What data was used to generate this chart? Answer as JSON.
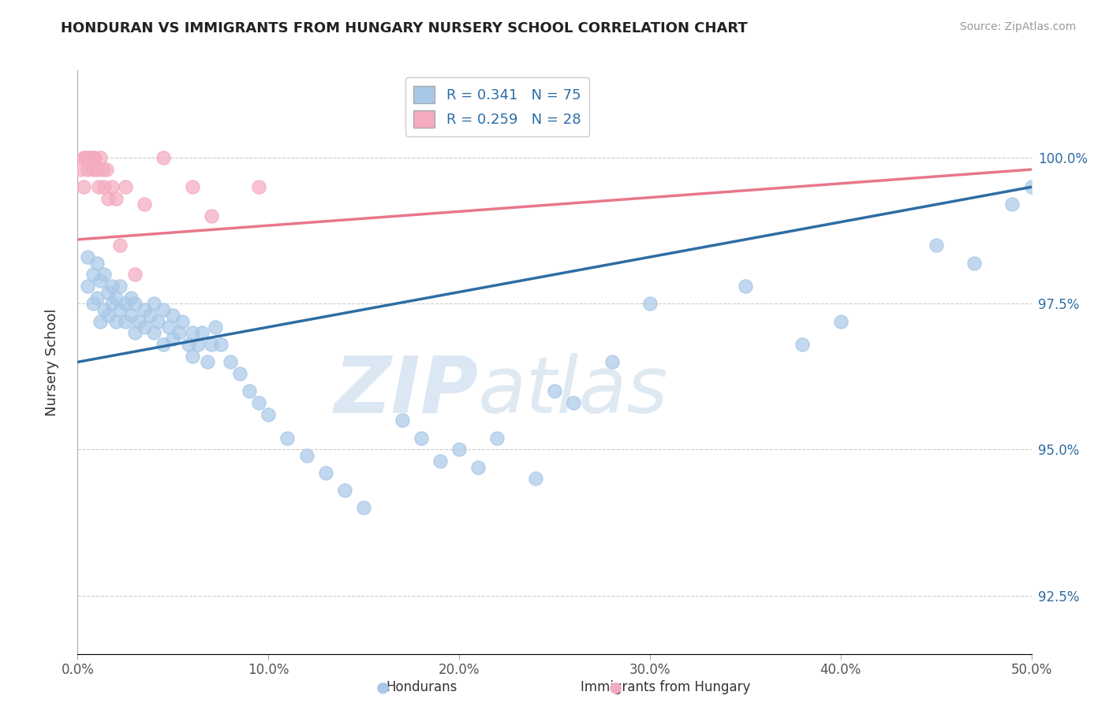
{
  "title": "HONDURAN VS IMMIGRANTS FROM HUNGARY NURSERY SCHOOL CORRELATION CHART",
  "source": "Source: ZipAtlas.com",
  "ylabel": "Nursery School",
  "xlim": [
    0.0,
    50.0
  ],
  "ylim": [
    91.5,
    101.5
  ],
  "xtick_labels": [
    "0.0%",
    "10.0%",
    "20.0%",
    "30.0%",
    "40.0%",
    "50.0%"
  ],
  "xtick_vals": [
    0,
    10,
    20,
    30,
    40,
    50
  ],
  "ytick_labels": [
    "92.5%",
    "95.0%",
    "97.5%",
    "100.0%"
  ],
  "ytick_vals": [
    92.5,
    95.0,
    97.5,
    100.0
  ],
  "legend_labels": [
    "Hondurans",
    "Immigrants from Hungary"
  ],
  "r_blue": 0.341,
  "n_blue": 75,
  "r_pink": 0.259,
  "n_pink": 28,
  "blue_color": "#A8C8E8",
  "pink_color": "#F4AABF",
  "blue_line_color": "#2E6DA4",
  "pink_line_color": "#E8778A",
  "blue_line_x0": 0.0,
  "blue_line_y0": 96.5,
  "blue_line_x1": 50.0,
  "blue_line_y1": 99.5,
  "pink_line_x0": 0.0,
  "pink_line_y0": 98.6,
  "pink_line_x1": 50.0,
  "pink_line_y1": 99.8,
  "honduran_x": [
    0.5,
    0.5,
    0.8,
    0.8,
    1.0,
    1.0,
    1.2,
    1.2,
    1.4,
    1.4,
    1.6,
    1.6,
    1.8,
    1.8,
    2.0,
    2.0,
    2.2,
    2.2,
    2.5,
    2.5,
    2.8,
    2.8,
    3.0,
    3.0,
    3.2,
    3.5,
    3.5,
    3.8,
    4.0,
    4.0,
    4.2,
    4.5,
    4.5,
    4.8,
    5.0,
    5.0,
    5.3,
    5.5,
    5.8,
    6.0,
    6.0,
    6.3,
    6.5,
    6.8,
    7.0,
    7.2,
    7.5,
    8.0,
    8.5,
    9.0,
    9.5,
    10.0,
    11.0,
    12.0,
    13.0,
    14.0,
    15.0,
    17.0,
    18.0,
    19.0,
    20.0,
    21.0,
    22.0,
    24.0,
    25.0,
    26.0,
    28.0,
    30.0,
    35.0,
    38.0,
    40.0,
    45.0,
    47.0,
    49.0,
    50.0
  ],
  "honduran_y": [
    97.8,
    98.3,
    97.5,
    98.0,
    97.6,
    98.2,
    97.2,
    97.9,
    97.4,
    98.0,
    97.3,
    97.7,
    97.5,
    97.8,
    97.2,
    97.6,
    97.4,
    97.8,
    97.5,
    97.2,
    97.3,
    97.6,
    97.0,
    97.5,
    97.2,
    97.4,
    97.1,
    97.3,
    97.5,
    97.0,
    97.2,
    97.4,
    96.8,
    97.1,
    97.3,
    96.9,
    97.0,
    97.2,
    96.8,
    97.0,
    96.6,
    96.8,
    97.0,
    96.5,
    96.8,
    97.1,
    96.8,
    96.5,
    96.3,
    96.0,
    95.8,
    95.6,
    95.2,
    94.9,
    94.6,
    94.3,
    94.0,
    95.5,
    95.2,
    94.8,
    95.0,
    94.7,
    95.2,
    94.5,
    96.0,
    95.8,
    96.5,
    97.5,
    97.8,
    96.8,
    97.2,
    98.5,
    98.2,
    99.2,
    99.5
  ],
  "hungary_x": [
    0.2,
    0.3,
    0.3,
    0.4,
    0.5,
    0.5,
    0.6,
    0.7,
    0.8,
    0.8,
    0.9,
    1.0,
    1.1,
    1.2,
    1.3,
    1.4,
    1.5,
    1.6,
    1.8,
    2.0,
    2.2,
    2.5,
    3.0,
    3.5,
    4.5,
    6.0,
    7.0,
    9.5
  ],
  "hungary_y": [
    99.8,
    100.0,
    99.5,
    100.0,
    100.0,
    99.8,
    100.0,
    100.0,
    100.0,
    99.8,
    100.0,
    99.8,
    99.5,
    100.0,
    99.8,
    99.5,
    99.8,
    99.3,
    99.5,
    99.3,
    98.5,
    99.5,
    98.0,
    99.2,
    100.0,
    99.5,
    99.0,
    99.5
  ],
  "watermark_zip": "ZIP",
  "watermark_atlas": "atlas"
}
